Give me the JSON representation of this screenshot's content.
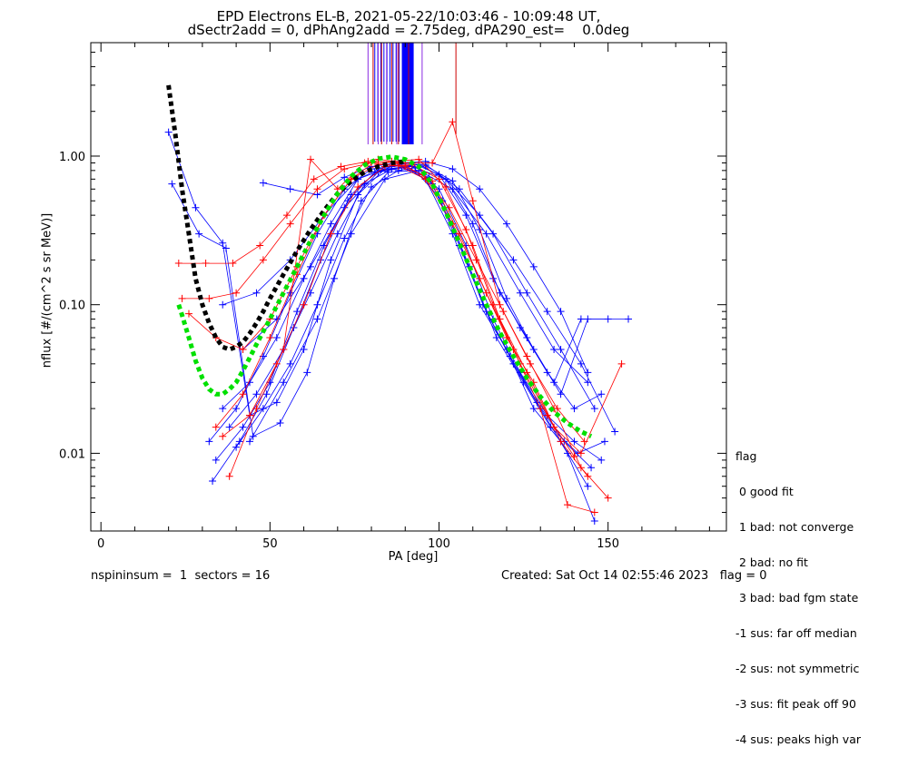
{
  "title": {
    "line1": "EPD Electrons EL-B, 2021-05-22/10:03:46 - 10:09:48 UT,",
    "line2": "dSectr2add = 0, dPhAng2add = 2.75deg, dPA290_est=    0.0deg"
  },
  "legend": {
    "title": "flag",
    "items": [
      " 0 good fit",
      " 1 bad: not converge",
      " 2 bad: no fit",
      " 3 bad: bad fgm state",
      "-1 sus: far off median",
      "-2 sus: not symmetric",
      "-3 sus: fit peak off 90",
      "-4 sus: peaks high var"
    ]
  },
  "footer": {
    "left": "nspininsum =  1  sectors = 16",
    "right": "Created: Sat Oct 14 02:55:46 2023   flag = 0"
  },
  "chart_data": {
    "type": "scatter",
    "xlabel": "PA [deg]",
    "ylabel": "nflux [#/(cm^2 s sr MeV)]",
    "xlim": [
      -3,
      185
    ],
    "ylim": [
      0.003,
      5.8
    ],
    "yscale": "log",
    "xticks": [
      0,
      50,
      100,
      150
    ],
    "yticks": [
      0.01,
      0.1,
      1.0
    ],
    "ytick_labels": [
      "0.01",
      "0.10",
      "1.00"
    ],
    "colors": {
      "series_a": "#0000ff",
      "series_b": "#ff0000",
      "fit_a": "#000000",
      "fit_b": "#00e000"
    },
    "series": [
      {
        "color": "#0000ff",
        "x": [
          20,
          28,
          36,
          44,
          52,
          60,
          68,
          76,
          84,
          92,
          100,
          108,
          116,
          124,
          132,
          140,
          148
        ],
        "y": [
          1.45,
          0.45,
          0.26,
          0.018,
          0.022,
          0.05,
          0.2,
          0.55,
          0.82,
          0.85,
          0.6,
          0.25,
          0.08,
          0.035,
          0.018,
          0.012,
          0.009
        ]
      },
      {
        "color": "#0000ff",
        "x": [
          21,
          29,
          37,
          45,
          53,
          61,
          69,
          77,
          85,
          93,
          101,
          109,
          117,
          125,
          133,
          141,
          149
        ],
        "y": [
          0.65,
          0.3,
          0.24,
          0.013,
          0.016,
          0.035,
          0.15,
          0.5,
          0.78,
          0.8,
          0.5,
          0.18,
          0.06,
          0.03,
          0.015,
          0.01,
          0.012
        ]
      },
      {
        "color": "#0000ff",
        "x": [
          32,
          40,
          48,
          56,
          64,
          72,
          80,
          88,
          96,
          104,
          112,
          120,
          128,
          136,
          144
        ],
        "y": [
          0.012,
          0.02,
          0.045,
          0.12,
          0.3,
          0.6,
          0.82,
          0.86,
          0.7,
          0.3,
          0.1,
          0.05,
          0.02,
          0.012,
          0.006
        ]
      },
      {
        "color": "#0000ff",
        "x": [
          34,
          42,
          50,
          58,
          66,
          74,
          82,
          90,
          98,
          106,
          114,
          122,
          130,
          138,
          146
        ],
        "y": [
          0.009,
          0.015,
          0.03,
          0.09,
          0.25,
          0.55,
          0.8,
          0.85,
          0.65,
          0.25,
          0.09,
          0.04,
          0.02,
          0.01,
          0.0035
        ]
      },
      {
        "color": "#0000ff",
        "x": [
          36,
          44,
          52,
          60,
          68,
          76,
          84,
          92,
          100,
          108,
          116,
          124,
          132,
          140,
          148
        ],
        "y": [
          0.02,
          0.03,
          0.06,
          0.15,
          0.35,
          0.7,
          0.85,
          0.9,
          0.75,
          0.4,
          0.15,
          0.07,
          0.035,
          0.02,
          0.025
        ]
      },
      {
        "color": "#0000ff",
        "x": [
          38,
          46,
          54,
          62,
          70,
          78,
          86,
          94,
          102,
          110,
          118,
          126,
          134,
          142,
          150
        ],
        "y": [
          0.015,
          0.025,
          0.05,
          0.12,
          0.3,
          0.65,
          0.82,
          0.88,
          0.7,
          0.35,
          0.12,
          0.06,
          0.03,
          0.08,
          0.08
        ]
      },
      {
        "color": "#0000ff",
        "x": [
          40,
          48,
          56,
          64,
          72,
          80,
          88,
          96,
          104,
          112,
          120,
          128,
          136,
          144,
          156
        ],
        "y": [
          0.011,
          0.02,
          0.04,
          0.1,
          0.28,
          0.62,
          0.8,
          0.86,
          0.68,
          0.32,
          0.11,
          0.05,
          0.025,
          0.08,
          0.08
        ]
      },
      {
        "color": "#0000ff",
        "x": [
          33,
          41,
          49,
          57,
          65,
          73,
          81,
          89,
          97,
          105,
          113,
          121,
          129,
          137,
          145
        ],
        "y": [
          0.0065,
          0.012,
          0.025,
          0.07,
          0.2,
          0.5,
          0.78,
          0.84,
          0.72,
          0.3,
          0.1,
          0.045,
          0.022,
          0.012,
          0.008
        ]
      },
      {
        "color": "#0000ff",
        "x": [
          48,
          56,
          64,
          72,
          80,
          88,
          96,
          104,
          112,
          120,
          128,
          136,
          144
        ],
        "y": [
          0.66,
          0.6,
          0.55,
          0.72,
          0.85,
          0.9,
          0.92,
          0.82,
          0.6,
          0.35,
          0.18,
          0.09,
          0.035
        ]
      },
      {
        "color": "#0000ff",
        "x": [
          36,
          46,
          56,
          66,
          76,
          86,
          96,
          106,
          116,
          126,
          136,
          146
        ],
        "y": [
          0.1,
          0.12,
          0.2,
          0.4,
          0.7,
          0.85,
          0.88,
          0.6,
          0.3,
          0.12,
          0.05,
          0.02
        ]
      },
      {
        "color": "#0000ff",
        "x": [
          42,
          52,
          62,
          72,
          82,
          92,
          102,
          112,
          122,
          132,
          142,
          152
        ],
        "y": [
          0.05,
          0.08,
          0.18,
          0.45,
          0.78,
          0.85,
          0.7,
          0.4,
          0.2,
          0.09,
          0.04,
          0.014
        ]
      },
      {
        "color": "#0000ff",
        "x": [
          44,
          54,
          64,
          74,
          84,
          94,
          104,
          114,
          124,
          134,
          144
        ],
        "y": [
          0.012,
          0.03,
          0.08,
          0.3,
          0.7,
          0.8,
          0.6,
          0.3,
          0.12,
          0.05,
          0.03
        ]
      },
      {
        "color": "#ff0000",
        "x": [
          23,
          31,
          39,
          47,
          55,
          63,
          71,
          79,
          87,
          95,
          103,
          111,
          119,
          127,
          135,
          143
        ],
        "y": [
          0.19,
          0.19,
          0.19,
          0.25,
          0.4,
          0.7,
          0.85,
          0.92,
          0.9,
          0.75,
          0.45,
          0.2,
          0.09,
          0.04,
          0.02,
          0.012
        ]
      },
      {
        "color": "#ff0000",
        "x": [
          24,
          32,
          40,
          48,
          56,
          64,
          72,
          80,
          88,
          96,
          104,
          112,
          120,
          128,
          136,
          144
        ],
        "y": [
          0.11,
          0.11,
          0.12,
          0.2,
          0.35,
          0.6,
          0.82,
          0.9,
          0.86,
          0.7,
          0.35,
          0.15,
          0.06,
          0.03,
          0.012,
          0.007
        ]
      },
      {
        "color": "#ff0000",
        "x": [
          26,
          34,
          42,
          50,
          58,
          66,
          74,
          82,
          90,
          98,
          106,
          114,
          122,
          130,
          138,
          146
        ],
        "y": [
          0.087,
          0.06,
          0.05,
          0.08,
          0.18,
          0.4,
          0.7,
          0.88,
          0.86,
          0.68,
          0.3,
          0.12,
          0.05,
          0.02,
          0.0045,
          0.004
        ]
      },
      {
        "color": "#ff0000",
        "x": [
          34,
          42,
          50,
          58,
          66,
          74,
          82,
          90,
          98,
          104,
          110,
          118,
          126,
          134,
          142,
          150
        ],
        "y": [
          0.015,
          0.025,
          0.06,
          0.16,
          0.4,
          0.7,
          0.95,
          0.9,
          0.9,
          1.7,
          0.5,
          0.1,
          0.045,
          0.02,
          0.008,
          0.005
        ]
      },
      {
        "color": "#ff0000",
        "x": [
          38,
          46,
          54,
          62,
          70,
          78,
          86,
          94,
          102,
          110,
          118,
          126,
          134,
          142,
          154
        ],
        "y": [
          0.007,
          0.02,
          0.05,
          0.95,
          0.6,
          0.9,
          0.92,
          0.95,
          0.62,
          0.25,
          0.08,
          0.035,
          0.015,
          0.01,
          0.04
        ]
      },
      {
        "color": "#ff0000",
        "x": [
          36,
          44,
          52,
          60,
          68,
          76,
          84,
          92,
          100,
          108,
          116,
          124,
          132,
          140
        ],
        "y": [
          0.013,
          0.018,
          0.04,
          0.1,
          0.3,
          0.62,
          0.85,
          0.88,
          0.7,
          0.32,
          0.1,
          0.04,
          0.018,
          0.0095
        ]
      }
    ],
    "fits": [
      {
        "color": "#000000",
        "x": [
          20,
          22,
          24,
          26,
          28,
          30,
          32,
          34,
          36,
          38,
          40,
          42,
          44,
          46,
          48,
          50,
          54,
          58,
          62,
          66,
          70,
          74,
          78,
          82,
          86,
          90
        ],
        "y": [
          3.0,
          1.4,
          0.6,
          0.3,
          0.15,
          0.1,
          0.075,
          0.06,
          0.052,
          0.05,
          0.052,
          0.056,
          0.064,
          0.075,
          0.09,
          0.11,
          0.16,
          0.23,
          0.32,
          0.43,
          0.56,
          0.68,
          0.78,
          0.85,
          0.9,
          0.92
        ]
      },
      {
        "color": "#00e000",
        "x": [
          23,
          24,
          26,
          28,
          30,
          32,
          34,
          36,
          38,
          40,
          42,
          44,
          46,
          48,
          50,
          54,
          58,
          62,
          66,
          70,
          74,
          78,
          82,
          86,
          90,
          94,
          98,
          102,
          106,
          110,
          114,
          118,
          122,
          126,
          130,
          134,
          138,
          142,
          145
        ],
        "y": [
          0.1,
          0.085,
          0.06,
          0.042,
          0.032,
          0.027,
          0.025,
          0.025,
          0.027,
          0.03,
          0.036,
          0.044,
          0.054,
          0.066,
          0.08,
          0.12,
          0.18,
          0.27,
          0.4,
          0.56,
          0.73,
          0.87,
          0.96,
          0.99,
          0.95,
          0.85,
          0.65,
          0.42,
          0.26,
          0.16,
          0.1,
          0.065,
          0.045,
          0.032,
          0.024,
          0.019,
          0.016,
          0.014,
          0.013
        ]
      }
    ],
    "marker": "plus",
    "vertical_lines": {
      "color_top_red": "#cc0000",
      "color_top_purple": "#8a2be2",
      "color_top_blue": "#0000ff",
      "y_bottom": 1.2,
      "y_top": 5.8,
      "red": [
        80.5,
        83,
        86,
        88,
        91
      ],
      "purple": [
        79,
        82,
        84.5,
        87.5,
        95
      ],
      "blue_band": [
        89,
        92.5
      ],
      "red_long": {
        "x": 105,
        "y_bottom": 1.4,
        "y_top": 5.8
      }
    }
  }
}
